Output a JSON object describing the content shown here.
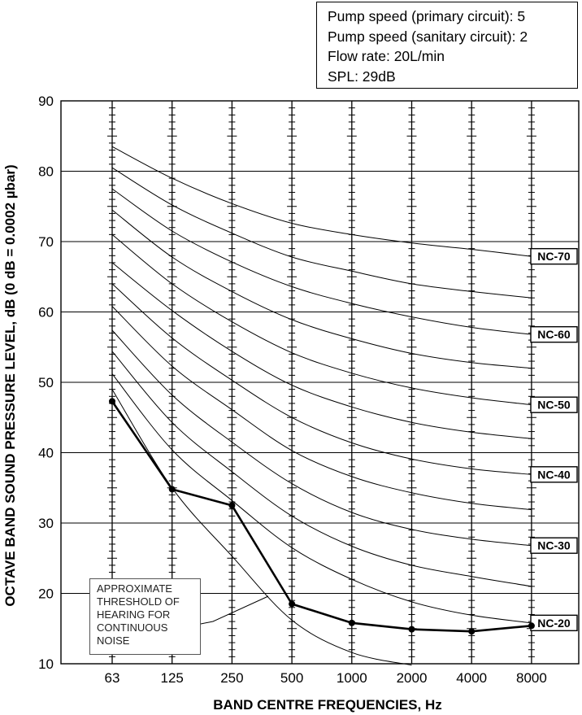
{
  "info_box": {
    "lines": [
      "Pump speed (primary circuit): 5",
      "Pump speed (sanitary circuit): 2",
      "Flow rate: 20L/min",
      "SPL: 29dB"
    ]
  },
  "threshold_note": {
    "lines": [
      "APPROXIMATE",
      "THRESHOLD OF",
      "HEARING FOR",
      "CONTINUOUS",
      "NOISE"
    ]
  },
  "chart_data": {
    "type": "line",
    "title": "",
    "xlabel": "BAND CENTRE FREQUENCIES, Hz",
    "ylabel": "OCTAVE BAND SOUND PRESSURE LEVEL, dB (0 dB = 0.0002 µbar)",
    "categories": [
      "63",
      "125",
      "250",
      "500",
      "1000",
      "2000",
      "4000",
      "8000"
    ],
    "ylim": [
      10,
      90
    ],
    "yticks": [
      10,
      20,
      30,
      40,
      50,
      60,
      70,
      80,
      90
    ],
    "grid": true,
    "measured_series": {
      "values": [
        47.3,
        34.8,
        32.5,
        18.5,
        15.8,
        14.9,
        14.6,
        15.4
      ]
    },
    "nc_curves": [
      {
        "name": "NC-70",
        "labelled": true,
        "values": [
          83.5,
          79.0,
          75.4,
          72.6,
          71.0,
          69.8,
          68.9,
          67.9
        ]
      },
      {
        "name": "NC-65",
        "labelled": false,
        "values": [
          80.5,
          75.2,
          71.2,
          67.8,
          65.8,
          64.0,
          62.9,
          62.0
        ]
      },
      {
        "name": "NC-60",
        "labelled": true,
        "values": [
          77.5,
          71.5,
          67.1,
          63.6,
          61.2,
          59.3,
          57.8,
          56.8
        ]
      },
      {
        "name": "NC-55",
        "labelled": false,
        "values": [
          74.5,
          67.8,
          62.9,
          58.9,
          56.2,
          54.1,
          52.8,
          52.0
        ]
      },
      {
        "name": "NC-50",
        "labelled": true,
        "values": [
          71.0,
          64.0,
          58.6,
          54.2,
          51.3,
          49.2,
          47.8,
          46.8
        ]
      },
      {
        "name": "NC-45",
        "labelled": false,
        "values": [
          67.0,
          60.2,
          54.4,
          49.6,
          46.5,
          44.3,
          42.9,
          42.0
        ]
      },
      {
        "name": "NC-40",
        "labelled": true,
        "values": [
          64.0,
          56.3,
          50.3,
          45.0,
          41.4,
          39.1,
          37.7,
          36.9
        ]
      },
      {
        "name": "NC-35",
        "labelled": false,
        "values": [
          60.8,
          52.3,
          46.1,
          40.3,
          36.6,
          34.3,
          32.8,
          31.9
        ]
      },
      {
        "name": "NC-30",
        "labelled": true,
        "values": [
          57.4,
          48.2,
          41.5,
          35.6,
          31.5,
          29.1,
          27.7,
          26.8
        ]
      },
      {
        "name": "NC-25",
        "labelled": false,
        "values": [
          54.4,
          44.3,
          37.3,
          31.0,
          26.7,
          24.0,
          22.4,
          21.0
        ]
      },
      {
        "name": "NC-20",
        "labelled": true,
        "values": [
          51.2,
          40.4,
          33.2,
          26.5,
          22.0,
          18.8,
          16.9,
          15.8
        ]
      }
    ],
    "threshold_curve": {
      "values": [
        49.0,
        35.0,
        25.3,
        16.2,
        11.6,
        9.8
      ]
    }
  }
}
